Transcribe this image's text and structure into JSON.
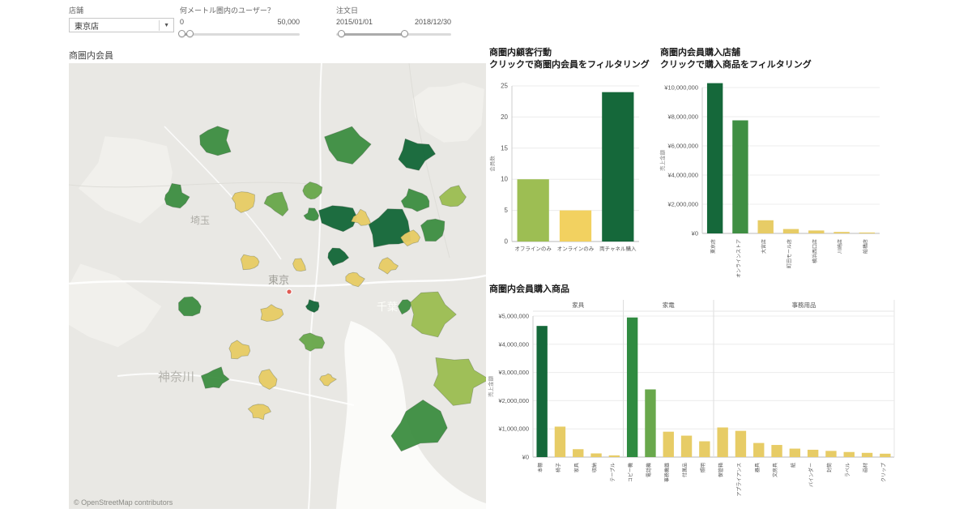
{
  "filters": {
    "store": {
      "label": "店舗",
      "value": "東京店"
    },
    "radius": {
      "label": "何メートル圏内のユーザー？",
      "min": "0",
      "max": "50,000"
    },
    "order_date": {
      "label": "注文日",
      "start": "2015/01/01",
      "end": "2018/12/30"
    }
  },
  "map": {
    "title": "商圏内会員",
    "region_labels": [
      "埼玉",
      "東京",
      "千葉",
      "神奈川"
    ],
    "attribution": "© OpenStreetMap contributors",
    "palette": [
      "#15683a",
      "#3f8f43",
      "#69a84c",
      "#9dbe53",
      "#e7cc66"
    ],
    "marker_color": "#e05c54"
  },
  "chart_data": [
    {
      "id": "behavior",
      "type": "bar",
      "title": "商圏内顧客行動",
      "subtitle": "クリックで商圏内会員をフィルタリング",
      "ylabel": "会員数",
      "ylim": [
        0,
        25
      ],
      "ytick_step": 5,
      "yen": false,
      "categories": [
        "オフラインのみ",
        "オンラインのみ",
        "両チャネル購入"
      ],
      "values": [
        10,
        5,
        24
      ],
      "colors": [
        "#9dbe53",
        "#f2d160",
        "#15683a"
      ]
    },
    {
      "id": "stores",
      "type": "bar",
      "title": "商圏内会員購入店舗",
      "subtitle": "クリックで購入商品をフィルタリング",
      "ylabel": "売上金額",
      "ylim": [
        0,
        10000000
      ],
      "ytick_step": 2000000,
      "yen": true,
      "categories": [
        "東京店",
        "オンラインストア",
        "大宮店",
        "町田モール店",
        "横浜西口店",
        "川崎店",
        "船橋店"
      ],
      "values": [
        10300000,
        7750000,
        900000,
        300000,
        200000,
        100000,
        60000
      ],
      "colors": [
        "#15683a",
        "#3f8f43",
        "#e7cc66",
        "#e7cc66",
        "#e7cc66",
        "#e7cc66",
        "#e7cc66"
      ]
    },
    {
      "id": "products",
      "type": "bar",
      "title": "商圏内会員購入商品",
      "ylabel": "売上金額",
      "ylim": [
        0,
        5000000
      ],
      "ytick_step": 1000000,
      "yen": true,
      "groups": [
        {
          "name": "家具",
          "categories": [
            "本棚",
            "椅子",
            "家具",
            "収納",
            "テーブル"
          ],
          "values": [
            4650000,
            1080000,
            280000,
            130000,
            60000
          ],
          "colors": [
            "#15683a",
            "#e7cc66",
            "#e7cc66",
            "#e7cc66",
            "#e7cc66"
          ]
        },
        {
          "name": "家電",
          "categories": [
            "コピー機",
            "電話機",
            "事務機器",
            "付属品",
            "照明"
          ],
          "values": [
            4950000,
            2400000,
            900000,
            760000,
            560000
          ],
          "colors": [
            "#2f8b40",
            "#69a84c",
            "#e7cc66",
            "#e7cc66",
            "#e7cc66"
          ]
        },
        {
          "name": "事務用品",
          "categories": [
            "保管箱",
            "アプライアンス",
            "器具",
            "文房具",
            "紙",
            "バインダー",
            "封筒",
            "ラベル",
            "画材",
            "クリップ"
          ],
          "values": [
            1050000,
            930000,
            500000,
            430000,
            300000,
            260000,
            220000,
            180000,
            150000,
            120000
          ],
          "colors": [
            "#e7cc66",
            "#e7cc66",
            "#e7cc66",
            "#e7cc66",
            "#e7cc66",
            "#e7cc66",
            "#e7cc66",
            "#e7cc66",
            "#e7cc66",
            "#e7cc66"
          ]
        }
      ]
    }
  ]
}
